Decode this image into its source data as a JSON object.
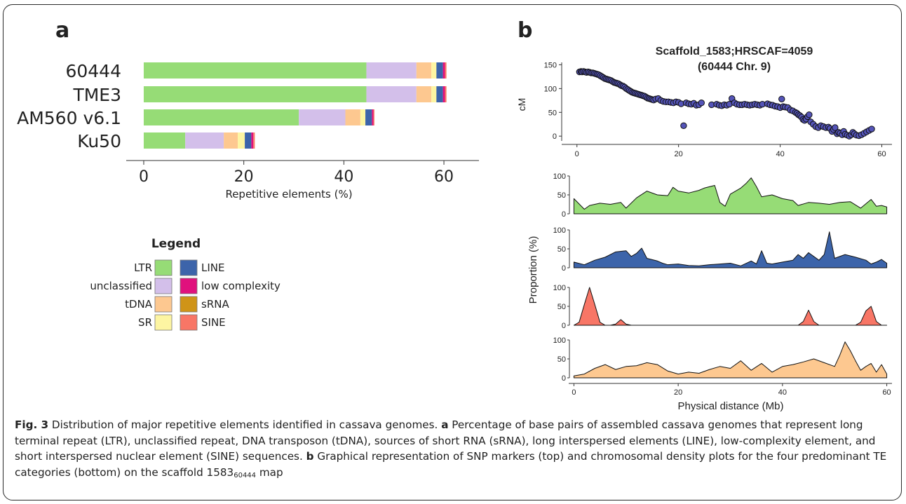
{
  "panel_a": {
    "label": "a",
    "xlabel": "Repetitive elements (%)",
    "legend_title": "Legend"
  },
  "panel_b": {
    "label": "b",
    "title_line1": "Scaffold_1583;HRSCAF=4059",
    "title_line2": "(60444 Chr. 9)",
    "ylabel_top": "cM",
    "ylabel_density": "Proportion (%)",
    "xlabel": "Physical distance (Mb)"
  },
  "caption": {
    "fig_label": "Fig. 3",
    "part1": " Distribution of major repetitive elements identified in cassava genomes. ",
    "a_label": "a",
    "part2": " Percentage of base pairs of assembled cassava genomes that represent long terminal repeat (LTR), unclassified repeat, DNA transposon (tDNA), sources of short RNA (sRNA), long interspersed elements (LINE), low-complexity element, and short interspersed nuclear element (SINE) sequences. ",
    "b_label": "b",
    "part3": " Graphical representation of SNP markers (top) and chromosomal density plots for the four predominant TE categories (bottom) on the scaffold 1583",
    "subscript": "60444",
    "part4": " map"
  },
  "chart_data": [
    {
      "type": "bar",
      "orientation": "horizontal",
      "stacked": true,
      "categories": [
        "60444",
        "TME3",
        "AM560 v6.1",
        "Ku50"
      ],
      "xlabel": "Repetitive elements (%)",
      "xticks": [
        0,
        20,
        40,
        60
      ],
      "xlim": [
        -3.5,
        67
      ],
      "legend_title": "Legend",
      "legend_position": "bottom-left",
      "series": [
        {
          "name": "LTR",
          "color": "#96dc76",
          "values": [
            44.5,
            44.5,
            31.0,
            8.3
          ]
        },
        {
          "name": "unclassified",
          "color": "#d3bfea",
          "values": [
            10.0,
            10.0,
            9.3,
            7.7
          ]
        },
        {
          "name": "tDNA",
          "color": "#fdc890",
          "values": [
            3.0,
            3.0,
            3.0,
            2.8
          ]
        },
        {
          "name": "SR",
          "color": "#fdf5a2",
          "values": [
            1.0,
            1.0,
            1.0,
            1.4
          ]
        },
        {
          "name": "LINE",
          "color": "#3c64aa",
          "values": [
            1.3,
            1.3,
            1.3,
            1.3
          ]
        },
        {
          "name": "low complexity",
          "color": "#e0117d",
          "values": [
            0.4,
            0.4,
            0.3,
            0.4
          ]
        },
        {
          "name": "sRNA",
          "color": "#cf9418",
          "values": [
            0.0,
            0.0,
            0.0,
            0.0
          ]
        },
        {
          "name": "SINE",
          "color": "#f87666",
          "values": [
            0.3,
            0.3,
            0.2,
            0.3
          ]
        }
      ]
    },
    {
      "type": "scatter",
      "title": "Scaffold_1583;HRSCAF=4059\n(60444 Chr. 9)",
      "ylabel": "cM",
      "xlim": [
        -3,
        62
      ],
      "ylim": [
        -10,
        155
      ],
      "xticks": [
        0,
        20,
        40,
        60
      ],
      "yticks": [
        0,
        50,
        100,
        150
      ],
      "marker_color": "#5454b8",
      "points": [
        [
          0.5,
          135
        ],
        [
          0.8,
          136
        ],
        [
          1.0,
          135
        ],
        [
          1.3,
          136
        ],
        [
          1.6,
          135
        ],
        [
          1.9,
          134
        ],
        [
          2.2,
          135
        ],
        [
          2.5,
          134
        ],
        [
          2.8,
          133
        ],
        [
          3.1,
          133
        ],
        [
          3.4,
          132
        ],
        [
          3.7,
          131
        ],
        [
          4.0,
          130
        ],
        [
          4.3,
          129
        ],
        [
          4.6,
          127
        ],
        [
          4.9,
          125
        ],
        [
          5.2,
          123
        ],
        [
          5.5,
          121
        ],
        [
          5.8,
          120
        ],
        [
          6.1,
          119
        ],
        [
          6.4,
          118
        ],
        [
          6.7,
          117
        ],
        [
          7.0,
          115
        ],
        [
          7.3,
          113
        ],
        [
          7.6,
          112
        ],
        [
          7.9,
          111
        ],
        [
          8.2,
          110
        ],
        [
          8.5,
          108
        ],
        [
          8.8,
          106
        ],
        [
          9.1,
          105
        ],
        [
          9.4,
          103
        ],
        [
          9.7,
          100
        ],
        [
          10.0,
          98
        ],
        [
          10.3,
          96
        ],
        [
          10.6,
          94
        ],
        [
          10.9,
          92
        ],
        [
          11.2,
          91
        ],
        [
          11.5,
          90
        ],
        [
          11.8,
          89
        ],
        [
          12.1,
          88
        ],
        [
          12.4,
          87
        ],
        [
          12.7,
          86
        ],
        [
          13.0,
          85
        ],
        [
          13.3,
          84
        ],
        [
          13.6,
          82
        ],
        [
          13.9,
          80
        ],
        [
          14.2,
          79
        ],
        [
          14.5,
          78
        ],
        [
          14.8,
          77
        ],
        [
          15.1,
          76
        ],
        [
          15.5,
          78
        ],
        [
          16.0,
          79
        ],
        [
          16.5,
          75
        ],
        [
          17.0,
          73
        ],
        [
          17.5,
          72
        ],
        [
          18.0,
          72
        ],
        [
          18.5,
          71
        ],
        [
          19.0,
          70
        ],
        [
          19.5,
          72
        ],
        [
          20.0,
          71
        ],
        [
          20.5,
          68
        ],
        [
          21.0,
          22
        ],
        [
          21.5,
          70
        ],
        [
          22.0,
          68
        ],
        [
          22.5,
          67
        ],
        [
          23.0,
          69
        ],
        [
          23.5,
          65
        ],
        [
          24.0,
          66
        ],
        [
          24.5,
          70
        ],
        [
          26.5,
          66
        ],
        [
          27.5,
          67
        ],
        [
          28.0,
          65
        ],
        [
          28.5,
          64
        ],
        [
          29.0,
          66
        ],
        [
          29.5,
          65
        ],
        [
          30.0,
          67
        ],
        [
          30.5,
          79
        ],
        [
          31.0,
          70
        ],
        [
          31.5,
          67
        ],
        [
          32.0,
          66
        ],
        [
          32.5,
          66
        ],
        [
          33.0,
          67
        ],
        [
          33.5,
          66
        ],
        [
          34.0,
          65
        ],
        [
          34.5,
          66
        ],
        [
          35.0,
          67
        ],
        [
          35.5,
          66
        ],
        [
          36.0,
          65
        ],
        [
          36.5,
          67
        ],
        [
          37.5,
          68
        ],
        [
          38.0,
          66
        ],
        [
          38.5,
          65
        ],
        [
          39.0,
          63
        ],
        [
          39.5,
          62
        ],
        [
          40.0,
          60
        ],
        [
          40.3,
          78
        ],
        [
          40.6,
          62
        ],
        [
          41.0,
          61
        ],
        [
          41.5,
          60
        ],
        [
          42.0,
          55
        ],
        [
          42.5,
          53
        ],
        [
          43.0,
          50
        ],
        [
          43.3,
          48
        ],
        [
          43.6,
          45
        ],
        [
          43.9,
          43
        ],
        [
          44.2,
          40
        ],
        [
          44.5,
          35
        ],
        [
          44.8,
          33
        ],
        [
          45.1,
          36
        ],
        [
          45.4,
          41
        ],
        [
          45.7,
          45
        ],
        [
          46.0,
          30
        ],
        [
          46.5,
          25
        ],
        [
          47.0,
          20
        ],
        [
          47.5,
          18
        ],
        [
          48.0,
          22
        ],
        [
          48.5,
          20
        ],
        [
          49.0,
          18
        ],
        [
          49.5,
          19
        ],
        [
          49.8,
          16
        ],
        [
          50.2,
          10
        ],
        [
          50.5,
          14
        ],
        [
          50.8,
          18
        ],
        [
          51.2,
          5
        ],
        [
          51.5,
          8
        ],
        [
          51.8,
          6
        ],
        [
          52.2,
          3
        ],
        [
          52.5,
          10
        ],
        [
          52.8,
          4
        ],
        [
          53.2,
          2
        ],
        [
          53.6,
          0
        ],
        [
          54.0,
          3
        ],
        [
          54.3,
          8
        ],
        [
          54.6,
          5
        ],
        [
          55.0,
          2
        ],
        [
          55.5,
          1
        ],
        [
          56.0,
          3
        ],
        [
          56.5,
          6
        ],
        [
          57.0,
          9
        ],
        [
          57.5,
          12
        ],
        [
          58.0,
          15
        ]
      ]
    },
    {
      "type": "area",
      "ylabel": "Proportion (%)",
      "xlabel": "Physical distance (Mb)",
      "xlim": [
        -1,
        61
      ],
      "ylim": [
        0,
        100
      ],
      "xticks": [
        0,
        20,
        40,
        60
      ],
      "yticks": [
        0,
        50,
        100
      ],
      "series": [
        {
          "category": "LTR",
          "color": "#96dc76",
          "x": [
            0,
            2,
            3,
            5,
            7,
            9,
            10,
            12,
            14,
            16,
            18,
            19,
            20,
            22,
            24,
            25,
            27,
            28,
            29,
            30,
            32,
            33,
            34,
            35,
            36,
            38,
            40,
            42,
            43,
            45,
            47,
            49,
            51,
            53,
            55,
            57,
            58,
            59,
            60
          ],
          "values": [
            40,
            12,
            22,
            28,
            25,
            30,
            15,
            42,
            60,
            50,
            48,
            70,
            60,
            55,
            62,
            68,
            75,
            30,
            20,
            52,
            68,
            80,
            95,
            72,
            45,
            50,
            40,
            35,
            22,
            30,
            28,
            25,
            30,
            32,
            15,
            38,
            20,
            22,
            18
          ]
        },
        {
          "category": "LINE",
          "color": "#3c64aa",
          "x": [
            0,
            2,
            4,
            6,
            8,
            10,
            11,
            12,
            13,
            14,
            16,
            17,
            18,
            20,
            22,
            24,
            26,
            28,
            30,
            32,
            34,
            35,
            36,
            37,
            38,
            40,
            42,
            43,
            44,
            45,
            46,
            47,
            48,
            49,
            50,
            52,
            54,
            56,
            57,
            58,
            59,
            60
          ],
          "values": [
            15,
            8,
            20,
            28,
            42,
            45,
            30,
            38,
            52,
            25,
            18,
            12,
            8,
            10,
            6,
            5,
            8,
            10,
            12,
            5,
            18,
            10,
            45,
            12,
            10,
            15,
            20,
            35,
            25,
            40,
            30,
            20,
            35,
            95,
            25,
            35,
            28,
            20,
            10,
            15,
            22,
            12
          ]
        },
        {
          "category": "SINE",
          "color": "#f87666",
          "x": [
            0,
            1,
            2,
            3,
            4,
            5,
            6,
            7,
            8,
            9,
            10,
            11,
            12,
            14,
            16,
            18,
            20,
            22,
            24,
            26,
            28,
            30,
            32,
            34,
            36,
            38,
            40,
            42,
            43,
            44,
            45,
            46,
            47,
            48,
            50,
            52,
            54,
            55,
            56,
            57,
            58,
            59,
            60
          ],
          "values": [
            0,
            8,
            55,
            100,
            55,
            8,
            0,
            0,
            3,
            15,
            3,
            0,
            0,
            0,
            0,
            0,
            0,
            0,
            0,
            0,
            0,
            0,
            0,
            0,
            0,
            0,
            0,
            0,
            0,
            10,
            40,
            10,
            0,
            0,
            0,
            0,
            0,
            8,
            38,
            50,
            10,
            0,
            0
          ]
        },
        {
          "category": "tDNA",
          "color": "#fdc890",
          "x": [
            0,
            2,
            4,
            6,
            8,
            10,
            12,
            14,
            16,
            18,
            20,
            22,
            24,
            26,
            28,
            30,
            32,
            34,
            36,
            38,
            40,
            42,
            44,
            46,
            48,
            50,
            51,
            52,
            53,
            54,
            55,
            56,
            57,
            58,
            59,
            60
          ],
          "values": [
            5,
            10,
            25,
            35,
            22,
            30,
            32,
            40,
            35,
            18,
            10,
            15,
            12,
            22,
            30,
            25,
            45,
            20,
            38,
            15,
            30,
            35,
            42,
            50,
            40,
            30,
            60,
            95,
            72,
            45,
            20,
            30,
            38,
            15,
            35,
            10
          ]
        }
      ]
    }
  ]
}
